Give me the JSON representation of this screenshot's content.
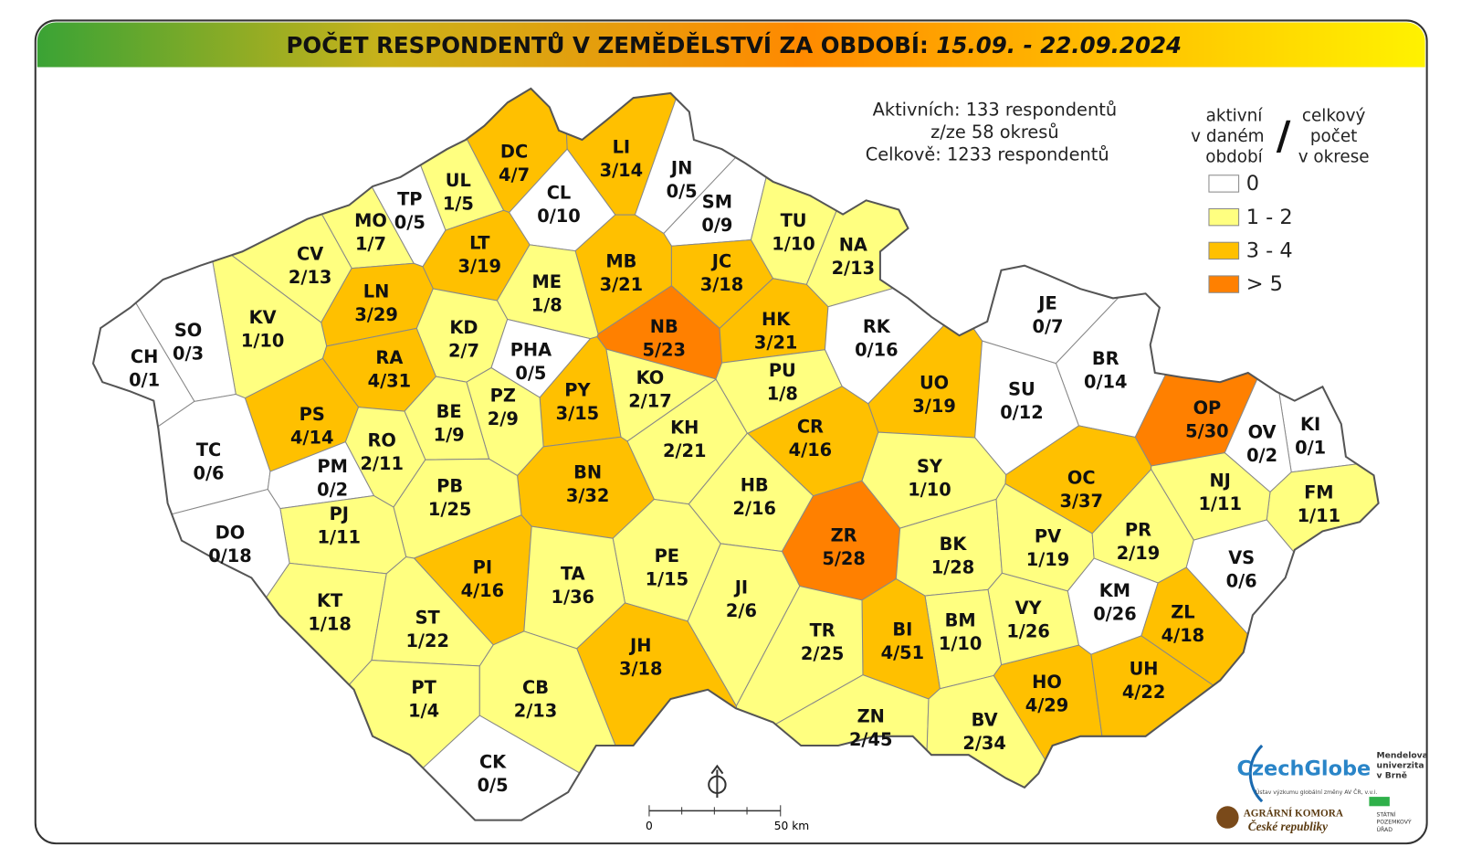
{
  "title": {
    "text": "POČET RESPONDENTŮ V ZEMĚDĚLSTVÍ ZA OBDOBÍ:",
    "period": "15.09. - 22.09.2024"
  },
  "summary": [
    "Aktivních: 133 respondentů",
    "z/ze 58 okresů",
    "Celkově: 1233 respondentů"
  ],
  "legend": {
    "left": [
      "aktivní",
      "v daném",
      "období"
    ],
    "separator": "/",
    "right": [
      "celkový",
      "počet",
      "v okrese"
    ],
    "items": [
      {
        "label": "0",
        "color": "#ffffff"
      },
      {
        "label": "1 - 2",
        "color": "#ffff80"
      },
      {
        "label": "3 - 4",
        "color": "#ffc000"
      },
      {
        "label": "> 5",
        "color": "#ff8000"
      }
    ]
  },
  "districts": [
    {
      "code": "DC",
      "label": "4/7",
      "color": "#ffc000"
    },
    {
      "code": "LI",
      "label": "3/14",
      "color": "#ffc000"
    },
    {
      "code": "JN",
      "label": "0/5",
      "color": "#ffffff"
    },
    {
      "code": "UL",
      "label": "1/5",
      "color": "#ffff80"
    },
    {
      "code": "TP",
      "label": "0/5",
      "color": "#ffffff"
    },
    {
      "code": "CL",
      "label": "0/10",
      "color": "#ffffff"
    },
    {
      "code": "SM",
      "label": "0/9",
      "color": "#ffffff"
    },
    {
      "code": "MO",
      "label": "1/7",
      "color": "#ffff80"
    },
    {
      "code": "TU",
      "label": "1/10",
      "color": "#ffff80"
    },
    {
      "code": "NA",
      "label": "2/13",
      "color": "#ffff80"
    },
    {
      "code": "CV",
      "label": "2/13",
      "color": "#ffff80"
    },
    {
      "code": "LT",
      "label": "3/19",
      "color": "#ffc000"
    },
    {
      "code": "MB",
      "label": "3/21",
      "color": "#ffc000"
    },
    {
      "code": "JC",
      "label": "3/18",
      "color": "#ffc000"
    },
    {
      "code": "ME",
      "label": "1/8",
      "color": "#ffff80"
    },
    {
      "code": "LN",
      "label": "3/29",
      "color": "#ffc000"
    },
    {
      "code": "KV",
      "label": "1/10",
      "color": "#ffff80"
    },
    {
      "code": "JE",
      "label": "0/7",
      "color": "#ffffff"
    },
    {
      "code": "SO",
      "label": "0/3",
      "color": "#ffffff"
    },
    {
      "code": "NB",
      "label": "5/23",
      "color": "#ff8000"
    },
    {
      "code": "HK",
      "label": "3/21",
      "color": "#ffc000"
    },
    {
      "code": "RK",
      "label": "0/16",
      "color": "#ffffff"
    },
    {
      "code": "KD",
      "label": "2/7",
      "color": "#ffff80"
    },
    {
      "code": "CH",
      "label": "0/1",
      "color": "#ffffff"
    },
    {
      "code": "RA",
      "label": "4/31",
      "color": "#ffc000"
    },
    {
      "code": "PHA",
      "label": "0/5",
      "color": "#ffffff"
    },
    {
      "code": "BR",
      "label": "0/14",
      "color": "#ffffff"
    },
    {
      "code": "PU",
      "label": "1/8",
      "color": "#ffff80"
    },
    {
      "code": "KO",
      "label": "2/17",
      "color": "#ffff80"
    },
    {
      "code": "UO",
      "label": "3/19",
      "color": "#ffc000"
    },
    {
      "code": "PY",
      "label": "3/15",
      "color": "#ffc000"
    },
    {
      "code": "PZ",
      "label": "2/9",
      "color": "#ffff80"
    },
    {
      "code": "BE",
      "label": "1/9",
      "color": "#ffff80"
    },
    {
      "code": "SU",
      "label": "0/12",
      "color": "#ffffff"
    },
    {
      "code": "OP",
      "label": "5/30",
      "color": "#ff8000"
    },
    {
      "code": "PS",
      "label": "4/14",
      "color": "#ffc000"
    },
    {
      "code": "KI",
      "label": "0/1",
      "color": "#ffffff"
    },
    {
      "code": "CR",
      "label": "4/16",
      "color": "#ffc000"
    },
    {
      "code": "KH",
      "label": "2/21",
      "color": "#ffff80"
    },
    {
      "code": "RO",
      "label": "2/11",
      "color": "#ffff80"
    },
    {
      "code": "OV",
      "label": "0/2",
      "color": "#ffffff"
    },
    {
      "code": "TC",
      "label": "0/6",
      "color": "#ffffff"
    },
    {
      "code": "SY",
      "label": "1/10",
      "color": "#ffff80"
    },
    {
      "code": "PM",
      "label": "0/2",
      "color": "#ffffff"
    },
    {
      "code": "OC",
      "label": "3/37",
      "color": "#ffc000"
    },
    {
      "code": "BN",
      "label": "3/32",
      "color": "#ffc000"
    },
    {
      "code": "FM",
      "label": "1/11",
      "color": "#ffff80"
    },
    {
      "code": "NJ",
      "label": "1/11",
      "color": "#ffff80"
    },
    {
      "code": "HB",
      "label": "2/16",
      "color": "#ffff80"
    },
    {
      "code": "PB",
      "label": "1/25",
      "color": "#ffff80"
    },
    {
      "code": "PJ",
      "label": "1/11",
      "color": "#ffff80"
    },
    {
      "code": "DO",
      "label": "0/18",
      "color": "#ffffff"
    },
    {
      "code": "ZR",
      "label": "5/28",
      "color": "#ff8000"
    },
    {
      "code": "BK",
      "label": "1/28",
      "color": "#ffff80"
    },
    {
      "code": "PV",
      "label": "1/19",
      "color": "#ffff80"
    },
    {
      "code": "PR",
      "label": "2/19",
      "color": "#ffff80"
    },
    {
      "code": "VS",
      "label": "0/6",
      "color": "#ffffff"
    },
    {
      "code": "PE",
      "label": "1/15",
      "color": "#ffff80"
    },
    {
      "code": "PI",
      "label": "4/16",
      "color": "#ffc000"
    },
    {
      "code": "TA",
      "label": "1/36",
      "color": "#ffff80"
    },
    {
      "code": "JI",
      "label": "2/6",
      "color": "#ffff80"
    },
    {
      "code": "KM",
      "label": "0/26",
      "color": "#ffffff"
    },
    {
      "code": "KT",
      "label": "1/18",
      "color": "#ffff80"
    },
    {
      "code": "ZL",
      "label": "4/18",
      "color": "#ffc000"
    },
    {
      "code": "VY",
      "label": "1/26",
      "color": "#ffff80"
    },
    {
      "code": "BM",
      "label": "1/10",
      "color": "#ffff80"
    },
    {
      "code": "BI",
      "label": "4/51",
      "color": "#ffc000"
    },
    {
      "code": "ST",
      "label": "1/22",
      "color": "#ffff80"
    },
    {
      "code": "TR",
      "label": "2/25",
      "color": "#ffff80"
    },
    {
      "code": "JH",
      "label": "3/18",
      "color": "#ffc000"
    },
    {
      "code": "HO",
      "label": "4/29",
      "color": "#ffc000"
    },
    {
      "code": "UH",
      "label": "4/22",
      "color": "#ffc000"
    },
    {
      "code": "PT",
      "label": "1/4",
      "color": "#ffff80"
    },
    {
      "code": "CB",
      "label": "2/13",
      "color": "#ffff80"
    },
    {
      "code": "ZN",
      "label": "2/45",
      "color": "#ffff80"
    },
    {
      "code": "BV",
      "label": "2/34",
      "color": "#ffff80"
    },
    {
      "code": "CK",
      "label": "0/5",
      "color": "#ffffff"
    }
  ],
  "scale": {
    "start": "0",
    "end": "50 km"
  },
  "logos": {
    "czechglobe": "CzechGlobe",
    "czechglobe_sub": "Ústav výzkumu globální změny AV ČR, v.v.i.",
    "mendelu": [
      "Mendelova",
      "univerzita",
      "v Brně"
    ],
    "komora": [
      "AGRÁRNÍ KOMORA",
      "České republiky"
    ],
    "spu": [
      "STÁTNÍ",
      "POZEMKOVÝ",
      "ÚŘAD"
    ]
  }
}
